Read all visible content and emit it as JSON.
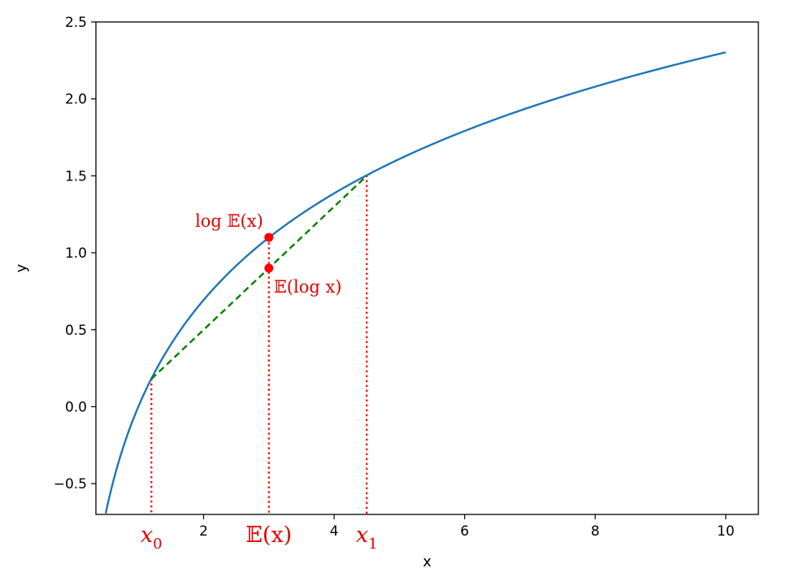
{
  "chart_data": {
    "type": "line",
    "title": "",
    "xlabel": "x",
    "ylabel": "y",
    "xlim": [
      0.35,
      10.5
    ],
    "ylim": [
      -0.7,
      2.5
    ],
    "xticks": [
      2,
      4,
      6,
      8,
      10
    ],
    "yticks": [
      -0.5,
      0.0,
      0.5,
      1.0,
      1.5,
      2.0,
      2.5
    ],
    "ytick_labels": [
      "−0.5",
      "0.0",
      "0.5",
      "1.0",
      "1.5",
      "2.0",
      "2.5"
    ],
    "grid": false,
    "series": [
      {
        "kind": "curve",
        "function": "log(x)",
        "color": "#1f77b4",
        "x_range": [
          0.5,
          10
        ]
      },
      {
        "kind": "chord",
        "color": "#008000",
        "style": "dashed",
        "x": [
          1.2,
          4.5
        ],
        "y": [
          0.18,
          1.5
        ]
      }
    ],
    "guides": {
      "color": "#ff0000",
      "style": "dotted",
      "x": [
        1.2,
        3.0,
        4.5
      ]
    },
    "points": [
      {
        "x": 3.0,
        "y": 1.1,
        "color": "#ff0000",
        "label": "log 𝔼(x)"
      },
      {
        "x": 3.0,
        "y": 0.9,
        "color": "#ff0000",
        "label": "𝔼(log x)"
      }
    ],
    "x_annotations": [
      {
        "x": 1.2,
        "label": "x",
        "sub": "0"
      },
      {
        "x": 3.0,
        "label": "𝔼(x)"
      },
      {
        "x": 4.5,
        "label": "x",
        "sub": "1"
      }
    ]
  }
}
